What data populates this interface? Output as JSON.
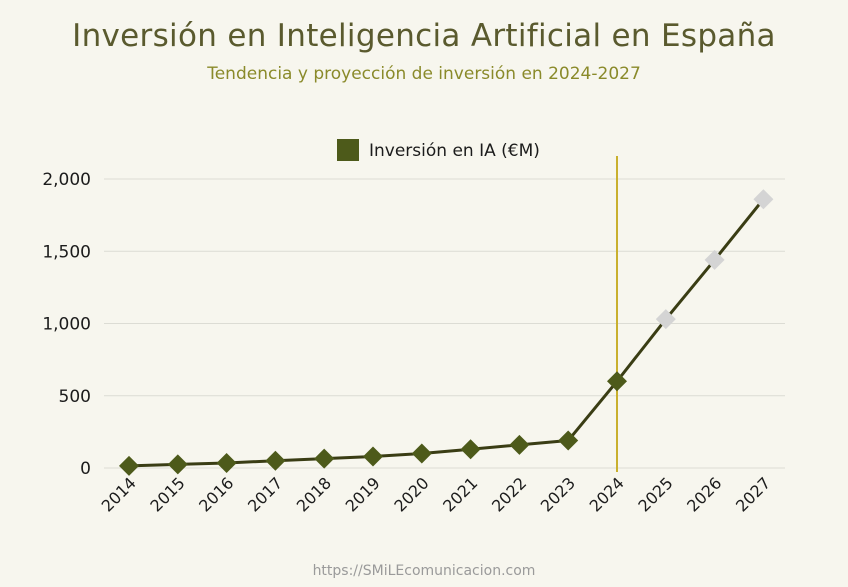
{
  "header": {
    "title": "Inversión en Inteligencia Artificial en España",
    "subtitle": "Tendencia y proyección de inversión en 2024-2027"
  },
  "footer": {
    "url": "https://SMiLEcomunicacion.com"
  },
  "colors": {
    "line": "#3a3d14",
    "marker_actual": "#4d5a1a",
    "marker_projected": "#d4d4d4",
    "divider": "#c9b02e",
    "grid": "#dcdcd4"
  },
  "chart_data": {
    "type": "line",
    "title": "Inversión en Inteligencia Artificial en España",
    "subtitle": "Tendencia y proyección de inversión en 2024-2027",
    "xlabel": "",
    "ylabel": "",
    "categories": [
      "2014",
      "2015",
      "2016",
      "2017",
      "2018",
      "2019",
      "2020",
      "2021",
      "2022",
      "2023",
      "2024",
      "2025",
      "2026",
      "2027"
    ],
    "series": [
      {
        "name": "Inversión en IA (€M)",
        "values": [
          15,
          25,
          35,
          50,
          65,
          80,
          100,
          130,
          160,
          190,
          600,
          1030,
          1440,
          1860
        ]
      }
    ],
    "projected_from": "2025",
    "divider_at": "2024",
    "ylim": [
      0,
      2000
    ],
    "yticks": [
      0,
      500,
      1000,
      1500,
      2000
    ],
    "ytick_labels": [
      "0",
      "500",
      "1,000",
      "1,500",
      "2,000"
    ],
    "legend": {
      "label": "Inversión en IA (€M)",
      "position": "top-center"
    },
    "grid": true
  }
}
